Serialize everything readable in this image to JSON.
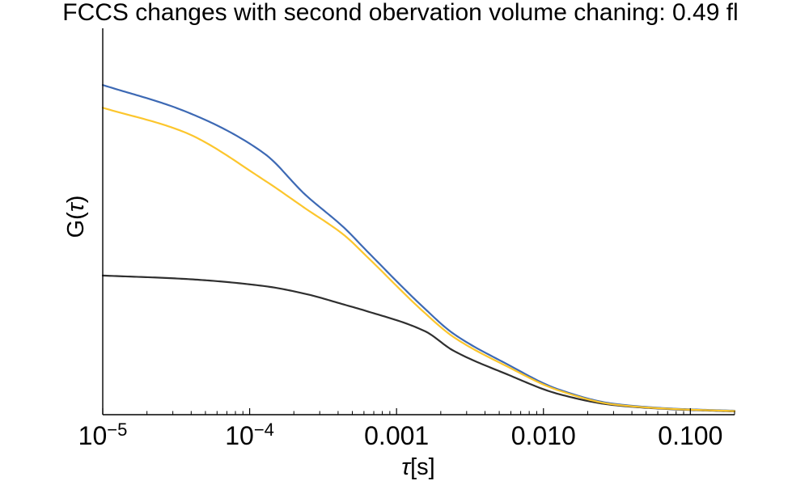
{
  "page": {
    "background": "#ffffff",
    "text_color": "#000000"
  },
  "chart_data": {
    "type": "line",
    "title": "FCCS changes with second obervation volume chaning: 0.49 fl",
    "xlabel_symbol": "τ",
    "xlabel_unit": "[s]",
    "ylabel_prefix": "G(",
    "ylabel_symbol": "τ",
    "ylabel_suffix": ")",
    "x_scale": "log",
    "xlim": [
      1e-05,
      0.2
    ],
    "ylim": [
      0,
      1.172
    ],
    "y_units_note": "no y tick labels shown; amplitudes normalized to blue plateau = 1.0",
    "grid": false,
    "legend": "none",
    "axis_color": "#000000",
    "x_major_ticks": [
      {
        "v": 1e-05,
        "base": "10",
        "exp": "−5"
      },
      {
        "v": 0.0001,
        "base": "10",
        "exp": "−4"
      },
      {
        "v": 0.001,
        "text": "0.001"
      },
      {
        "v": 0.01,
        "text": "0.010"
      },
      {
        "v": 0.1,
        "text": "0.100"
      }
    ],
    "x_minor_ticks": [
      2e-05,
      3e-05,
      4e-05,
      5e-05,
      6e-05,
      7e-05,
      8e-05,
      9e-05,
      0.0002,
      0.0003,
      0.0004,
      0.0005,
      0.0006,
      0.0007,
      0.0008,
      0.0009,
      0.002,
      0.003,
      0.004,
      0.005,
      0.006,
      0.007,
      0.008,
      0.009,
      0.02,
      0.03,
      0.04,
      0.05,
      0.06,
      0.07,
      0.08,
      0.09,
      0.2
    ],
    "series": [
      {
        "name": "blue",
        "color": "#3d69b4",
        "x": [
          1e-05,
          3.55e-05,
          0.000126,
          0.000237,
          0.000447,
          0.000617,
          0.00158,
          0.0024,
          0.00562,
          0.0126,
          0.0302,
          0.0794,
          0.2
        ],
        "y": [
          1.0,
          0.922,
          0.792,
          0.669,
          0.564,
          0.5,
          0.319,
          0.248,
          0.154,
          0.077,
          0.033,
          0.018,
          0.012
        ]
      },
      {
        "name": "dark-gray",
        "color": "#2f2f2f",
        "x": [
          1e-05,
          3.55e-05,
          0.000126,
          0.000237,
          0.000447,
          0.000617,
          0.00158,
          0.0024,
          0.00562,
          0.0126,
          0.0302,
          0.0794,
          0.2
        ],
        "y": [
          0.422,
          0.412,
          0.39,
          0.367,
          0.333,
          0.315,
          0.252,
          0.196,
          0.123,
          0.063,
          0.029,
          0.016,
          0.01
        ]
      },
      {
        "name": "yellow",
        "color": "#fcc62d",
        "x": [
          1e-05,
          3.55e-05,
          0.000126,
          0.000237,
          0.000447,
          0.000617,
          0.00158,
          0.0024,
          0.00562,
          0.0126,
          0.0302,
          0.0794,
          0.2
        ],
        "y": [
          0.931,
          0.858,
          0.711,
          0.627,
          0.542,
          0.483,
          0.306,
          0.238,
          0.147,
          0.074,
          0.031,
          0.017,
          0.011
        ]
      }
    ]
  }
}
